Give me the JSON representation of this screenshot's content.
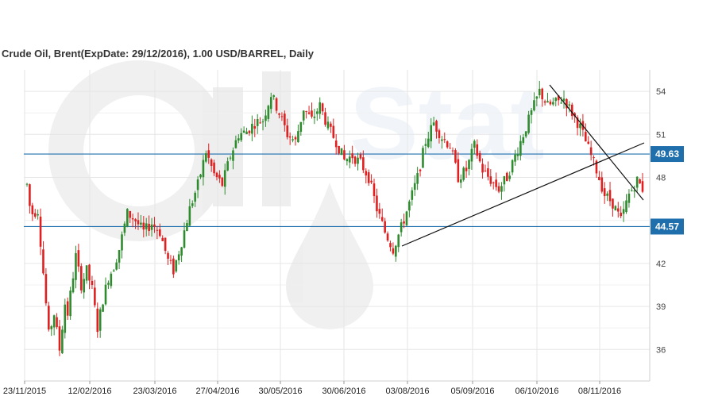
{
  "chart_data": {
    "type": "candlestick",
    "title": "Crude Oil, Brent(ExpDate: 29/12/2016), 1.00 USD/BARREL, Daily",
    "xlabel": "",
    "ylabel": "",
    "ylim": [
      33.8,
      55.5
    ],
    "grid": true,
    "y_ticks": [
      36,
      39,
      42,
      48,
      51,
      54
    ],
    "x_ticks": [
      "23/11/2015",
      "12/02/2016",
      "23/03/2016",
      "27/04/2016",
      "30/05/2016",
      "30/06/2016",
      "03/08/2016",
      "05/09/2016",
      "06/10/2016",
      "08/11/2016"
    ],
    "horizontal_levels": [
      {
        "value": 49.63,
        "label": "49.63",
        "color": "#1f6fad"
      },
      {
        "value": 44.57,
        "label": "44.57",
        "color": "#1f6fad"
      }
    ],
    "colors": {
      "up": "#2e8b2e",
      "down": "#e02020",
      "grid": "#e6e6e6",
      "level": "#1f6fad"
    },
    "watermark": "OilStat",
    "price_path": [
      [
        0,
        47.5
      ],
      [
        1,
        46.0
      ],
      [
        2,
        45.5
      ],
      [
        4,
        45.7
      ],
      [
        8,
        37.0
      ],
      [
        10,
        38.5
      ],
      [
        12,
        36.0
      ],
      [
        14,
        39.2
      ],
      [
        15,
        38.5
      ],
      [
        18,
        42.5
      ],
      [
        20,
        40.5
      ],
      [
        22,
        41.5
      ],
      [
        24,
        40.2
      ],
      [
        26,
        37.5
      ],
      [
        28,
        39.5
      ],
      [
        30,
        41.0
      ],
      [
        32,
        41.8
      ],
      [
        34,
        43.0
      ],
      [
        37,
        45.5
      ],
      [
        40,
        45.0
      ],
      [
        43,
        44.2
      ],
      [
        46,
        44.8
      ],
      [
        49,
        44.2
      ],
      [
        52,
        42.2
      ],
      [
        54,
        41.5
      ],
      [
        57,
        43.5
      ],
      [
        60,
        45.8
      ],
      [
        63,
        47.5
      ],
      [
        66,
        49.8
      ],
      [
        69,
        48.2
      ],
      [
        72,
        47.5
      ],
      [
        75,
        49.5
      ],
      [
        78,
        51.0
      ],
      [
        81,
        51.2
      ],
      [
        84,
        51.8
      ],
      [
        87,
        52.0
      ],
      [
        90,
        53.8
      ],
      [
        93,
        52.5
      ],
      [
        96,
        51.0
      ],
      [
        99,
        50.5
      ],
      [
        102,
        52.8
      ],
      [
        105,
        52.0
      ],
      [
        108,
        53.0
      ],
      [
        111,
        51.5
      ],
      [
        114,
        50.5
      ],
      [
        117,
        49.2
      ],
      [
        120,
        49.5
      ],
      [
        123,
        49.0
      ],
      [
        126,
        48.0
      ],
      [
        129,
        45.8
      ],
      [
        132,
        44.2
      ],
      [
        135,
        43.0
      ],
      [
        138,
        44.5
      ],
      [
        141,
        46.2
      ],
      [
        144,
        48.0
      ],
      [
        147,
        50.5
      ],
      [
        150,
        51.8
      ],
      [
        153,
        50.8
      ],
      [
        156,
        50.2
      ],
      [
        159,
        48.0
      ],
      [
        162,
        48.5
      ],
      [
        165,
        50.2
      ],
      [
        168,
        48.5
      ],
      [
        171,
        47.8
      ],
      [
        174,
        47.2
      ],
      [
        177,
        48.0
      ],
      [
        180,
        49.5
      ],
      [
        183,
        51.0
      ],
      [
        186,
        52.5
      ],
      [
        189,
        54.0
      ],
      [
        192,
        53.0
      ],
      [
        195,
        53.2
      ],
      [
        198,
        53.5
      ],
      [
        201,
        52.5
      ],
      [
        204,
        51.5
      ],
      [
        207,
        50.0
      ],
      [
        210,
        48.5
      ],
      [
        213,
        46.8
      ],
      [
        216,
        46.2
      ],
      [
        219,
        45.0
      ],
      [
        222,
        46.8
      ],
      [
        225,
        47.8
      ],
      [
        227,
        47.2
      ]
    ]
  }
}
